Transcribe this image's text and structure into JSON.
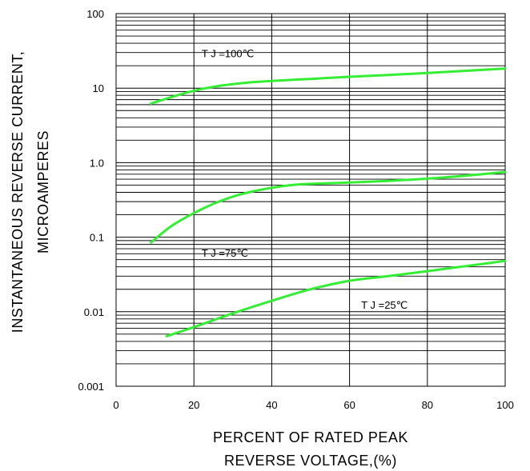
{
  "chart_data": {
    "type": "line",
    "title": "",
    "xlabel": [
      "PERCENT OF RATED PEAK",
      "REVERSE VOLTAGE,(%)"
    ],
    "ylabel": [
      "INSTANTANEOUS REVERSE CURRENT,",
      "MICROAMPERES"
    ],
    "xlim": [
      0,
      100
    ],
    "ylim": [
      0.001,
      100
    ],
    "yscale": "log",
    "grid": true,
    "legend": "none",
    "xticks": [
      {
        "value": 0,
        "label": "0"
      },
      {
        "value": 20,
        "label": "20"
      },
      {
        "value": 40,
        "label": "40"
      },
      {
        "value": 60,
        "label": "60"
      },
      {
        "value": 80,
        "label": "80"
      },
      {
        "value": 100,
        "label": "100"
      }
    ],
    "yticks": [
      {
        "value": 100,
        "label": "100"
      },
      {
        "value": 10,
        "label": "10"
      },
      {
        "value": 1,
        "label": "1.0"
      },
      {
        "value": 0.1,
        "label": "0.1"
      },
      {
        "value": 0.01,
        "label": "0.01"
      },
      {
        "value": 0.001,
        "label": "0.001"
      }
    ],
    "line_color": "#33ee33",
    "series": [
      {
        "name": "T J =100℃",
        "label_at": {
          "x": 22,
          "y": 26
        },
        "x": [
          9,
          15,
          20,
          25,
          30,
          35,
          40,
          50,
          60,
          70,
          80,
          90,
          100
        ],
        "y": [
          6.2,
          7.8,
          9.2,
          10.4,
          11.3,
          12.0,
          12.5,
          13.3,
          14.2,
          15.0,
          16.0,
          17.1,
          18.3
        ]
      },
      {
        "name": "T J =75℃",
        "label_at": {
          "x": 22,
          "y": 0.055
        },
        "x": [
          9,
          12,
          15,
          20,
          25,
          30,
          35,
          40,
          45,
          50,
          60,
          70,
          80,
          90,
          100
        ],
        "y": [
          0.085,
          0.115,
          0.15,
          0.21,
          0.28,
          0.35,
          0.41,
          0.46,
          0.5,
          0.52,
          0.54,
          0.57,
          0.61,
          0.67,
          0.75
        ]
      },
      {
        "name": "T J =25℃",
        "label_at": {
          "x": 63,
          "y": 0.011
        },
        "x": [
          13,
          20,
          30,
          40,
          50,
          60,
          70,
          80,
          90,
          100
        ],
        "y": [
          0.0047,
          0.0062,
          0.0095,
          0.014,
          0.02,
          0.026,
          0.03,
          0.035,
          0.041,
          0.048
        ]
      }
    ]
  }
}
